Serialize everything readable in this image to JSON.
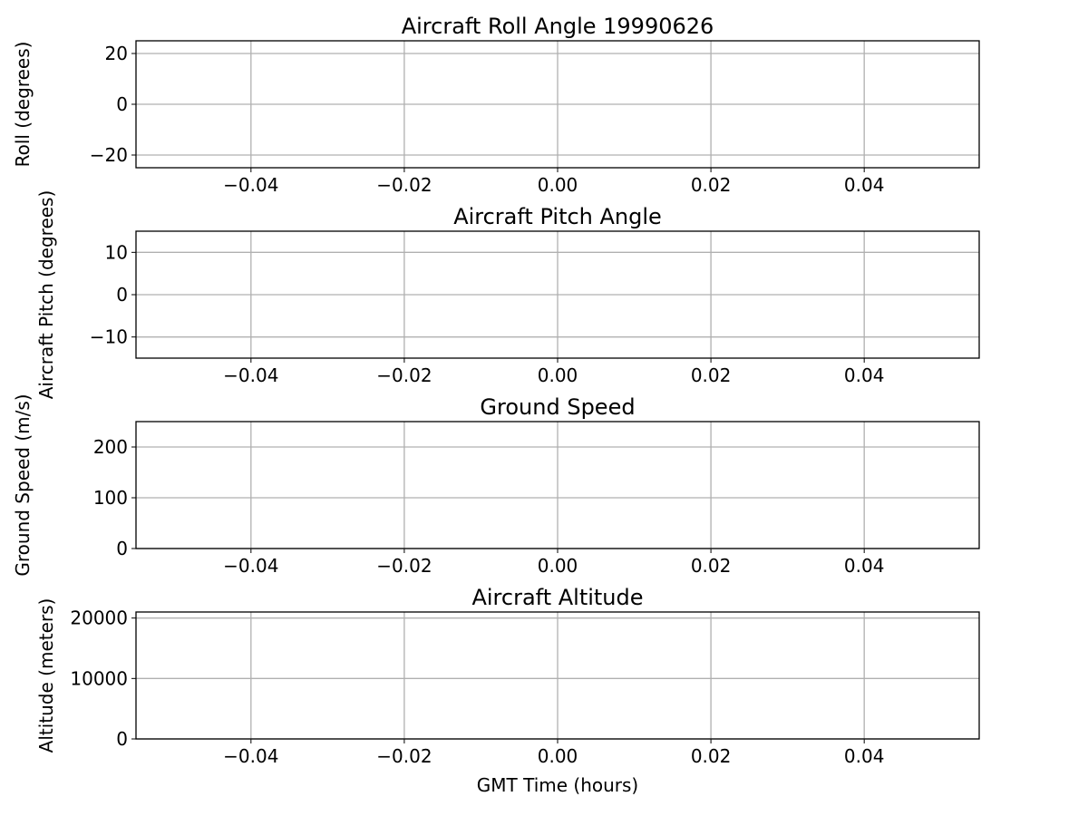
{
  "chart_data": [
    {
      "type": "line",
      "title": "Aircraft Roll Angle 19990626",
      "xlabel": "",
      "ylabel": "Roll (degrees)",
      "xlim": [
        -0.055,
        0.055
      ],
      "ylim": [
        -25,
        25
      ],
      "xticks": [
        -0.04,
        -0.02,
        0.0,
        0.02,
        0.04
      ],
      "xtick_labels": [
        "−0.04",
        "−0.02",
        "0.00",
        "0.02",
        "0.04"
      ],
      "yticks": [
        -20,
        0,
        20
      ],
      "ytick_labels": [
        "−20",
        "0",
        "20"
      ],
      "grid": true,
      "series": []
    },
    {
      "type": "line",
      "title": "Aircraft Pitch Angle",
      "xlabel": "",
      "ylabel": "Aircraft Pitch (degrees)",
      "xlim": [
        -0.055,
        0.055
      ],
      "ylim": [
        -15,
        15
      ],
      "xticks": [
        -0.04,
        -0.02,
        0.0,
        0.02,
        0.04
      ],
      "xtick_labels": [
        "−0.04",
        "−0.02",
        "0.00",
        "0.02",
        "0.04"
      ],
      "yticks": [
        -10,
        0,
        10
      ],
      "ytick_labels": [
        "−10",
        "0",
        "10"
      ],
      "grid": true,
      "series": []
    },
    {
      "type": "line",
      "title": "Ground Speed",
      "xlabel": "",
      "ylabel": "Ground Speed (m/s)",
      "xlim": [
        -0.055,
        0.055
      ],
      "ylim": [
        0,
        250
      ],
      "xticks": [
        -0.04,
        -0.02,
        0.0,
        0.02,
        0.04
      ],
      "xtick_labels": [
        "−0.04",
        "−0.02",
        "0.00",
        "0.02",
        "0.04"
      ],
      "yticks": [
        0,
        100,
        200
      ],
      "ytick_labels": [
        "0",
        "100",
        "200"
      ],
      "grid": true,
      "series": []
    },
    {
      "type": "line",
      "title": "Aircraft Altitude",
      "xlabel": "GMT Time (hours)",
      "ylabel": "Altitude (meters)",
      "xlim": [
        -0.055,
        0.055
      ],
      "ylim": [
        0,
        21000
      ],
      "xticks": [
        -0.04,
        -0.02,
        0.0,
        0.02,
        0.04
      ],
      "xtick_labels": [
        "−0.04",
        "−0.02",
        "0.00",
        "0.02",
        "0.04"
      ],
      "yticks": [
        0,
        10000,
        20000
      ],
      "ytick_labels": [
        "0",
        "10000",
        "20000"
      ],
      "grid": true,
      "series": []
    }
  ],
  "colors": {
    "grid": "#b0b0b0",
    "axes": "#000000"
  }
}
